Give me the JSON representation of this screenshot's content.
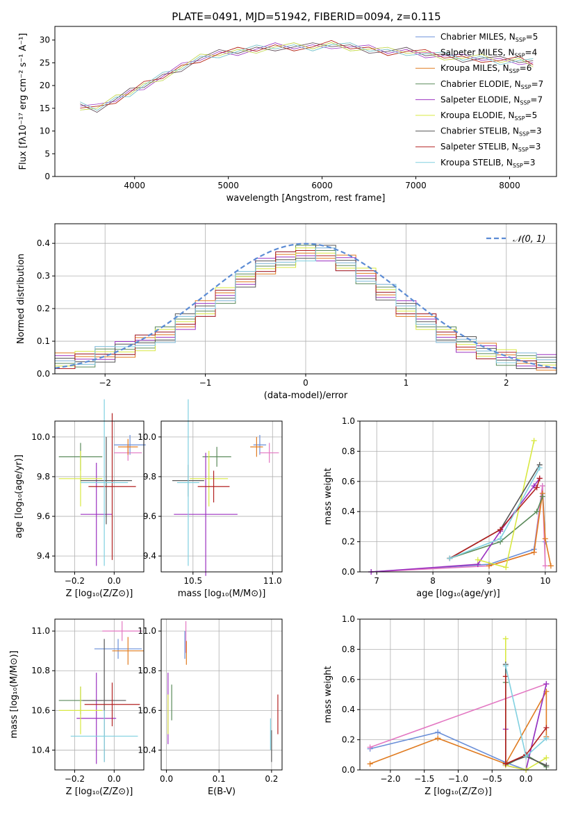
{
  "figure": {
    "title": "PLATE=0491, MJD=51942, FIBERID=0094, z=0.115"
  },
  "series_styles": [
    {
      "name": "Chabrier MILES",
      "nssp": "5",
      "color": "#6a8fd8"
    },
    {
      "name": "Salpeter MILES",
      "nssp": "4",
      "color": "#e377c2"
    },
    {
      "name": "Kroupa MILES",
      "nssp": "6",
      "color": "#e07b20"
    },
    {
      "name": "Chabrier ELODIE",
      "nssp": "7",
      "color": "#5a8a5a"
    },
    {
      "name": "Salpeter ELODIE",
      "nssp": "7",
      "color": "#9b30c0"
    },
    {
      "name": "Kroupa ELODIE",
      "nssp": "5",
      "color": "#d8e840"
    },
    {
      "name": "Chabrier STELIB",
      "nssp": "3",
      "color": "#555555"
    },
    {
      "name": "Salpeter STELIB",
      "nssp": "3",
      "color": "#b22020"
    },
    {
      "name": "Kroupa STELIB",
      "nssp": "3",
      "color": "#80d0e0"
    }
  ],
  "chart_data": [
    {
      "id": "spectrum",
      "type": "line",
      "title": "PLATE=0491, MJD=51942, FIBERID=0094, z=0.115",
      "xlabel": "wavelength [Angstrom, rest frame]",
      "ylabel": "Flux [fλ10⁻¹⁷ erg cm⁻² s⁻¹ A⁻¹]",
      "xlim": [
        3150,
        8500
      ],
      "ylim": [
        0,
        33
      ],
      "xticks": [
        4000,
        5000,
        6000,
        7000,
        8000
      ],
      "yticks": [
        0,
        5,
        10,
        15,
        20,
        25,
        30
      ],
      "grid": false,
      "legend": "right",
      "x": [
        3420,
        3600,
        3800,
        3950,
        4100,
        4300,
        4500,
        4700,
        4900,
        5100,
        5300,
        5500,
        5700,
        5900,
        6100,
        6300,
        6500,
        6700,
        6900,
        7100,
        7300,
        7500,
        7700,
        7900,
        8100,
        8250
      ],
      "y": [
        15.5,
        15,
        17,
        18.5,
        20,
        22,
        24,
        26,
        27,
        27.5,
        28,
        28.5,
        28.5,
        28.5,
        29,
        28.5,
        28,
        27.5,
        27.5,
        27,
        26.5,
        26,
        26,
        25.5,
        25.5,
        25
      ]
    },
    {
      "id": "residuals",
      "type": "bar",
      "xlabel": "(data-model)/error",
      "ylabel": "Normed distribution",
      "xlim": [
        -2.5,
        2.5
      ],
      "ylim": [
        0,
        0.46
      ],
      "xticks": [
        -2,
        -1,
        0,
        1,
        2
      ],
      "yticks": [
        0.0,
        0.1,
        0.2,
        0.3,
        0.4
      ],
      "grid": true,
      "legend": "top-right",
      "legend_label": "𝒩(0, 1)",
      "bin_edges": [
        -2.5,
        -2.3,
        -2.1,
        -1.9,
        -1.7,
        -1.5,
        -1.3,
        -1.1,
        -0.9,
        -0.7,
        -0.5,
        -0.3,
        -0.1,
        0.1,
        0.3,
        0.5,
        0.7,
        0.9,
        1.1,
        1.3,
        1.5,
        1.7,
        1.9,
        2.1,
        2.3,
        2.5
      ],
      "values": [
        0.04,
        0.045,
        0.06,
        0.075,
        0.095,
        0.12,
        0.16,
        0.2,
        0.24,
        0.29,
        0.33,
        0.35,
        0.37,
        0.37,
        0.34,
        0.3,
        0.25,
        0.2,
        0.16,
        0.12,
        0.09,
        0.07,
        0.05,
        0.04,
        0.035
      ]
    },
    {
      "id": "age-vs-z",
      "type": "scatter",
      "xlabel": "Z [log₁₀(Z/Z⊙)]",
      "ylabel": "age  [log₁₀(age/yr)]",
      "xlim": [
        -0.3,
        0.15
      ],
      "ylim": [
        9.32,
        10.08
      ],
      "xticks": [
        -0.2,
        0.0
      ],
      "yticks": [
        9.4,
        9.6,
        9.8,
        10.0
      ],
      "grid": true,
      "points": [
        {
          "x": 0.08,
          "y": 9.96,
          "xerr": 0.08,
          "yerr": 0.05
        },
        {
          "x": 0.07,
          "y": 9.92,
          "xerr": 0.07,
          "yerr": 0.04
        },
        {
          "x": 0.07,
          "y": 9.95,
          "xerr": 0.05,
          "yerr": 0.04
        },
        {
          "x": -0.17,
          "y": 9.9,
          "xerr": 0.11,
          "yerr": 0.07
        },
        {
          "x": -0.09,
          "y": 9.61,
          "xerr": 0.08,
          "yerr": 0.26
        },
        {
          "x": -0.17,
          "y": 9.79,
          "xerr": 0.11,
          "yerr": 0.14
        },
        {
          "x": -0.04,
          "y": 9.78,
          "xerr": 0.13,
          "yerr": 0.22
        },
        {
          "x": -0.01,
          "y": 9.75,
          "xerr": 0.12,
          "yerr": 0.37
        },
        {
          "x": -0.05,
          "y": 9.77,
          "xerr": 0.12,
          "yerr": 0.42
        }
      ]
    },
    {
      "id": "age-vs-mass",
      "type": "scatter",
      "xlabel": "mass [log₁₀(M/M⊙)]",
      "ylabel": "",
      "xlim": [
        10.3,
        11.06
      ],
      "ylim": [
        9.32,
        10.08
      ],
      "xticks": [
        10.5,
        11.0
      ],
      "yticks": [
        9.4,
        9.6,
        9.8,
        10.0
      ],
      "grid": true,
      "points": [
        {
          "x": 10.92,
          "y": 9.96,
          "xerr": 0.04,
          "yerr": 0.05
        },
        {
          "x": 10.98,
          "y": 9.92,
          "xerr": 0.06,
          "yerr": 0.05
        },
        {
          "x": 10.9,
          "y": 9.95,
          "xerr": 0.04,
          "yerr": 0.05
        },
        {
          "x": 10.65,
          "y": 9.9,
          "xerr": 0.09,
          "yerr": 0.05
        },
        {
          "x": 10.58,
          "y": 9.61,
          "xerr": 0.2,
          "yerr": 0.31
        },
        {
          "x": 10.6,
          "y": 9.79,
          "xerr": 0.12,
          "yerr": 0.14
        },
        {
          "x": 10.47,
          "y": 9.78,
          "xerr": 0.1,
          "yerr": 0.08
        },
        {
          "x": 10.63,
          "y": 9.75,
          "xerr": 0.1,
          "yerr": 0.08
        },
        {
          "x": 10.47,
          "y": 9.77,
          "xerr": 0.07,
          "yerr": 0.42
        }
      ]
    },
    {
      "id": "mass-weight-vs-age",
      "type": "line",
      "xlabel": "age  [log₁₀(age/yr)]",
      "ylabel": "mass weight",
      "xlim": [
        6.7,
        10.2
      ],
      "ylim": [
        0,
        1
      ],
      "xticks": [
        7,
        8,
        9,
        10
      ],
      "yticks": [
        0.0,
        0.2,
        0.4,
        0.6,
        0.8,
        1.0
      ],
      "grid": true,
      "series": [
        {
          "name": "Chabrier MILES",
          "x": [
            6.9,
            9.0,
            9.8,
            9.95,
            10.0
          ],
          "y": [
            0.0,
            0.05,
            0.15,
            0.57,
            0.2
          ]
        },
        {
          "name": "Salpeter MILES",
          "x": [
            6.9,
            9.0,
            9.8,
            9.95,
            10.0
          ],
          "y": [
            0.0,
            0.04,
            0.13,
            0.57,
            0.04
          ]
        },
        {
          "name": "Kroupa MILES",
          "x": [
            9.0,
            9.8,
            9.95,
            10.0,
            10.1
          ],
          "y": [
            0.04,
            0.13,
            0.52,
            0.22,
            0.04
          ]
        },
        {
          "name": "Chabrier ELODIE",
          "x": [
            8.3,
            9.2,
            9.85,
            9.95
          ],
          "y": [
            0.09,
            0.2,
            0.4,
            0.5
          ]
        },
        {
          "name": "Salpeter ELODIE",
          "x": [
            6.9,
            8.8,
            9.2,
            9.8,
            9.9
          ],
          "y": [
            0.0,
            0.05,
            0.27,
            0.57,
            0.62
          ]
        },
        {
          "name": "Kroupa ELODIE",
          "x": [
            8.8,
            9.3,
            9.8
          ],
          "y": [
            0.08,
            0.03,
            0.87
          ]
        },
        {
          "name": "Chabrier STELIB",
          "x": [
            8.3,
            9.2,
            9.9
          ],
          "y": [
            0.09,
            0.28,
            0.71
          ]
        },
        {
          "name": "Salpeter STELIB",
          "x": [
            8.3,
            9.2,
            9.85,
            9.9
          ],
          "y": [
            0.09,
            0.28,
            0.56,
            0.62
          ]
        },
        {
          "name": "Kroupa STELIB",
          "x": [
            8.3,
            9.2,
            9.9
          ],
          "y": [
            0.09,
            0.22,
            0.69
          ]
        }
      ]
    },
    {
      "id": "mass-vs-z",
      "type": "scatter",
      "xlabel": "Z [log₁₀(Z/Z⊙)]",
      "ylabel": "mass [log₁₀(M/M⊙)]",
      "xlim": [
        -0.3,
        0.15
      ],
      "ylim": [
        10.3,
        11.06
      ],
      "xticks": [
        -0.2,
        0.0
      ],
      "yticks": [
        10.4,
        10.6,
        10.8,
        11.0
      ],
      "grid": true,
      "points": [
        {
          "x": 0.02,
          "y": 10.91,
          "xerr": 0.12,
          "yerr": 0.05
        },
        {
          "x": 0.04,
          "y": 11.0,
          "xerr": 0.1,
          "yerr": 0.05
        },
        {
          "x": 0.07,
          "y": 10.9,
          "xerr": 0.08,
          "yerr": 0.07
        },
        {
          "x": -0.17,
          "y": 10.65,
          "xerr": 0.11,
          "yerr": 0.07
        },
        {
          "x": -0.09,
          "y": 10.56,
          "xerr": 0.1,
          "yerr": 0.23
        },
        {
          "x": -0.17,
          "y": 10.6,
          "xerr": 0.11,
          "yerr": 0.12
        },
        {
          "x": -0.05,
          "y": 10.65,
          "xerr": 0.11,
          "yerr": 0.31
        },
        {
          "x": -0.01,
          "y": 10.63,
          "xerr": 0.14,
          "yerr": 0.11
        },
        {
          "x": -0.05,
          "y": 10.47,
          "xerr": 0.17,
          "yerr": 0.13
        }
      ]
    },
    {
      "id": "mass-vs-ebv",
      "type": "scatter",
      "xlabel": "E(B-V)",
      "ylabel": "",
      "xlim": [
        -0.01,
        0.22
      ],
      "ylim": [
        10.3,
        11.06
      ],
      "xticks": [
        0.0,
        0.1,
        0.2
      ],
      "yticks": [
        10.4,
        10.6,
        10.8,
        11.0
      ],
      "grid": true,
      "points": [
        {
          "x": 0.035,
          "y": 10.93,
          "xerr": 0,
          "yerr": 0.07
        },
        {
          "x": 0.037,
          "y": 10.97,
          "xerr": 0,
          "yerr": 0.08
        },
        {
          "x": 0.038,
          "y": 10.89,
          "xerr": 0,
          "yerr": 0.06
        },
        {
          "x": 0.01,
          "y": 10.64,
          "xerr": 0,
          "yerr": 0.09
        },
        {
          "x": 0.003,
          "y": 10.61,
          "xerr": 0,
          "yerr": 0.18
        },
        {
          "x": 0.003,
          "y": 10.58,
          "xerr": 0,
          "yerr": 0.1
        },
        {
          "x": 0.2,
          "y": 10.42,
          "xerr": 0,
          "yerr": 0.08
        },
        {
          "x": 0.212,
          "y": 10.58,
          "xerr": 0,
          "yerr": 0.1
        },
        {
          "x": 0.198,
          "y": 10.48,
          "xerr": 0,
          "yerr": 0.08
        }
      ]
    },
    {
      "id": "mass-weight-vs-z",
      "type": "line",
      "xlabel": "Z [log₁₀(Z/Z⊙)]",
      "ylabel": "mass weight",
      "xlim": [
        -2.45,
        0.45
      ],
      "ylim": [
        0,
        1
      ],
      "xticks": [
        -2.0,
        -1.5,
        -1.0,
        -0.5,
        0.0
      ],
      "yticks": [
        0.0,
        0.2,
        0.4,
        0.6,
        0.8,
        1.0
      ],
      "grid": true,
      "series": [
        {
          "name": "Chabrier MILES",
          "x": [
            -2.3,
            -1.3,
            -0.3,
            0.0,
            0.3
          ],
          "y": [
            0.14,
            0.25,
            0.05,
            0.0,
            0.57
          ]
        },
        {
          "name": "Salpeter MILES",
          "x": [
            -2.3,
            0.3
          ],
          "y": [
            0.15,
            0.57
          ]
        },
        {
          "name": "Kroupa MILES",
          "x": [
            -2.3,
            -1.3,
            -0.3,
            0.3,
            0.3
          ],
          "y": [
            0.04,
            0.21,
            0.04,
            0.52,
            0.22
          ]
        },
        {
          "name": "Chabrier ELODIE",
          "x": [
            -0.3,
            -0.3,
            0.0,
            0.3
          ],
          "y": [
            0.58,
            0.03,
            0.1,
            0.02
          ]
        },
        {
          "name": "Salpeter ELODIE",
          "x": [
            -0.3,
            -0.3,
            0.0,
            0.3
          ],
          "y": [
            0.27,
            0.03,
            0.0,
            0.57
          ]
        },
        {
          "name": "Kroupa ELODIE",
          "x": [
            -0.3,
            -0.3,
            0.0,
            0.3
          ],
          "y": [
            0.87,
            0.03,
            0.0,
            0.08
          ]
        },
        {
          "name": "Chabrier STELIB",
          "x": [
            -0.3,
            -0.3,
            0.0,
            0.3
          ],
          "y": [
            0.7,
            0.04,
            0.09,
            0.03
          ]
        },
        {
          "name": "Salpeter STELIB",
          "x": [
            -0.3,
            -0.3,
            0.0,
            0.3
          ],
          "y": [
            0.62,
            0.04,
            0.1,
            0.28
          ]
        },
        {
          "name": "Kroupa STELIB",
          "x": [
            -0.3,
            0.0,
            0.3
          ],
          "y": [
            0.69,
            0.09,
            0.21
          ]
        }
      ]
    }
  ]
}
